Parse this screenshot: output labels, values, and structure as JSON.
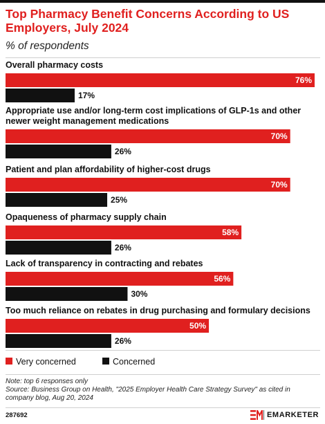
{
  "title": "Top Pharmacy Benefit Concerns According to US Employers, July 2024",
  "subtitle": "% of respondents",
  "colors": {
    "very_concerned": "#e0201f",
    "concerned": "#111111",
    "title": "#e0201f"
  },
  "chart_data": {
    "type": "bar",
    "orientation": "horizontal",
    "categories": [
      "Overall pharmacy costs",
      "Appropriate use and/or long-term cost implications of GLP-1s and other newer weight management medications",
      "Patient and plan affordability of higher-cost drugs",
      "Opaqueness of pharmacy supply chain",
      "Lack of transparency in contracting and rebates",
      "Too much reliance on rebates in drug purchasing and formulary decisions"
    ],
    "series": [
      {
        "name": "Very concerned",
        "values": [
          76,
          70,
          70,
          58,
          56,
          50
        ],
        "labels": [
          "76%",
          "70%",
          "70%",
          "58%",
          "56%",
          "50%"
        ]
      },
      {
        "name": "Concerned",
        "values": [
          17,
          26,
          25,
          26,
          30,
          26
        ],
        "labels": [
          "17%",
          "26%",
          "25%",
          "26%",
          "30%",
          "26%"
        ]
      }
    ],
    "xlim": [
      0,
      76
    ],
    "legend_position": "bottom-left",
    "grid": false
  },
  "legend": [
    "Very concerned",
    "Concerned"
  ],
  "note": "Note: top 6 responses only",
  "source": "Source: Business Group on Health, \"2025 Employer Health Care Strategy Survey\" as cited in company blog, Aug 20, 2024",
  "chart_id": "287692",
  "brand": {
    "mark": "EM",
    "name": "EMARKETER"
  }
}
